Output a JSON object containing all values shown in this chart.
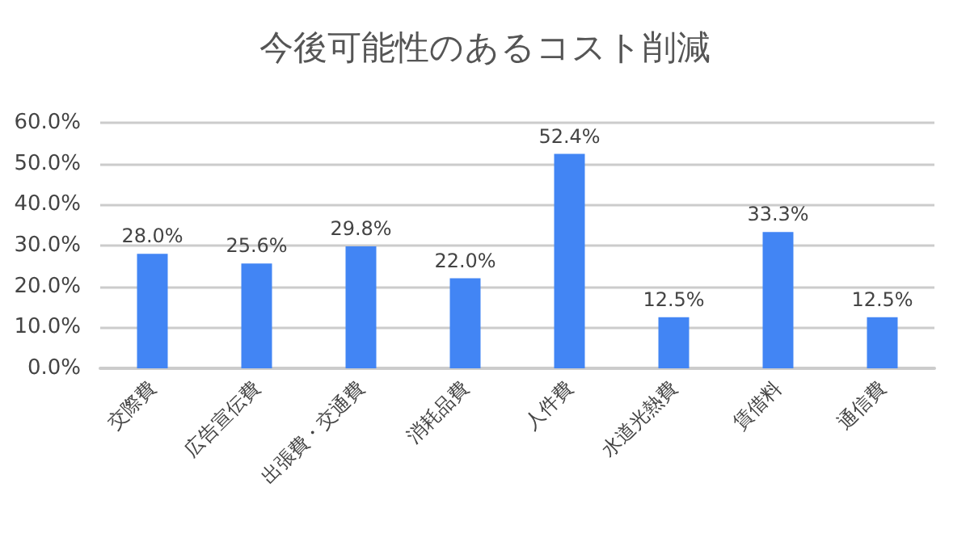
{
  "chart_data": {
    "type": "bar",
    "title": "今後可能性のあるコスト削減",
    "categories": [
      "交際費",
      "広告宣伝費",
      "出張費・交通費",
      "消耗品費",
      "人件費",
      "水道光熱費",
      "賃借料",
      "通信費"
    ],
    "values": [
      28.0,
      25.6,
      29.8,
      22.0,
      52.4,
      12.5,
      33.3,
      12.5
    ],
    "value_labels": [
      "28.0%",
      "25.6%",
      "29.8%",
      "22.0%",
      "52.4%",
      "12.5%",
      "33.3%",
      "12.5%"
    ],
    "color": "#4285f4",
    "ylim": [
      0,
      60
    ],
    "yticks": [
      {
        "value": 0,
        "label": "0.0%"
      },
      {
        "value": 10,
        "label": "10.0%"
      },
      {
        "value": 20,
        "label": "20.0%"
      },
      {
        "value": 30,
        "label": "30.0%"
      },
      {
        "value": 40,
        "label": "40.0%"
      },
      {
        "value": 50,
        "label": "50.0%"
      },
      {
        "value": 60,
        "label": "60.0%"
      }
    ],
    "grid": "y"
  }
}
